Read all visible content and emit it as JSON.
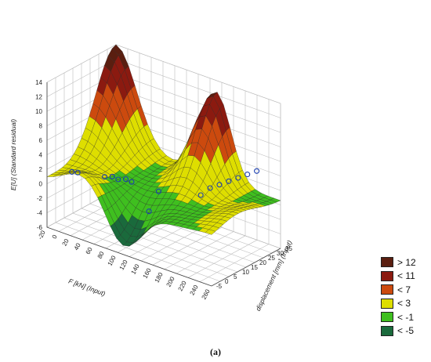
{
  "chart_data": {
    "type": "surface3d",
    "zlabel": "E[U] (Standard residual)",
    "xlabel": "F [kN] (Input)",
    "ylabel": "displacement [mm] (Input)",
    "x_ticks": [
      "-20",
      "0",
      "20",
      "40",
      "60",
      "80",
      "100",
      "120",
      "140",
      "160",
      "180",
      "200",
      "220",
      "240",
      "260"
    ],
    "y_ticks": [
      "-5",
      "0",
      "5",
      "10",
      "15",
      "20",
      "25",
      "30",
      "35"
    ],
    "z_ticks": [
      "-6",
      "-4",
      "-2",
      "0",
      "2",
      "4",
      "6",
      "8",
      "10",
      "12",
      "14"
    ],
    "xlim": [
      -20,
      260
    ],
    "ylim": [
      -5,
      35
    ],
    "zlim": [
      -6,
      14
    ],
    "peaks": [
      {
        "x": -20,
        "y": 35,
        "z": 14
      },
      {
        "x": 150,
        "y": 35,
        "z": 12.5
      }
    ],
    "minimum": {
      "x": 110,
      "y": -5,
      "z": -5
    },
    "observed_points": [
      {
        "x": -10,
        "y": 6,
        "z": 0.5
      },
      {
        "x": 0,
        "y": 6,
        "z": 0.7
      },
      {
        "x": 40,
        "y": 8,
        "z": 1.0
      },
      {
        "x": 50,
        "y": 9,
        "z": 1.2
      },
      {
        "x": 60,
        "y": 9,
        "z": 1.1
      },
      {
        "x": 70,
        "y": 10,
        "z": 1.3
      },
      {
        "x": 80,
        "y": 10,
        "z": 1.2
      },
      {
        "x": 120,
        "y": 12,
        "z": 0.8
      },
      {
        "x": 130,
        "y": 3,
        "z": -0.5
      },
      {
        "x": 180,
        "y": 16,
        "z": 1.5
      },
      {
        "x": 190,
        "y": 18,
        "z": 2.5
      },
      {
        "x": 200,
        "y": 20,
        "z": 3.0
      },
      {
        "x": 210,
        "y": 22,
        "z": 3.5
      },
      {
        "x": 220,
        "y": 24,
        "z": 4.0
      },
      {
        "x": 230,
        "y": 26,
        "z": 4.5
      },
      {
        "x": 240,
        "y": 28,
        "z": 5.0
      }
    ],
    "legend": [
      {
        "label": "> 12",
        "color": "#5a1e10"
      },
      {
        "label": "< 11",
        "color": "#8b1a10"
      },
      {
        "label": "< 7",
        "color": "#cc4a0e"
      },
      {
        "label": "< 3",
        "color": "#dede00"
      },
      {
        "label": "< -1",
        "color": "#3fbf1f"
      },
      {
        "label": "< -5",
        "color": "#1a6a3c"
      }
    ]
  },
  "caption": "(a)"
}
